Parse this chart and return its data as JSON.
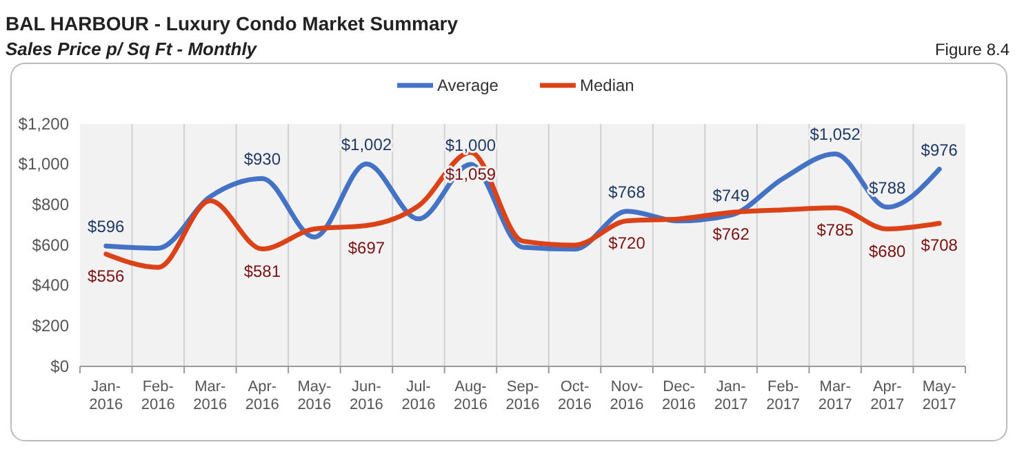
{
  "chart_data": {
    "type": "line",
    "title": "BAL HARBOUR - Luxury Condo Market Summary",
    "subtitle": "Sales Price  p/ Sq Ft - Monthly",
    "annotations": [
      "Figure 8.4"
    ],
    "categories": [
      "Jan-2016",
      "Feb-2016",
      "Mar-2016",
      "Apr-2016",
      "May-2016",
      "Jun-2016",
      "Jul-2016",
      "Aug-2016",
      "Sep-2016",
      "Oct-2016",
      "Nov-2016",
      "Dec-2016",
      "Jan-2017",
      "Feb-2017",
      "Mar-2017",
      "Apr-2017",
      "May-2017"
    ],
    "series": [
      {
        "name": "Average",
        "color": "#4472c4",
        "values": [
          596,
          585,
          840,
          930,
          640,
          1002,
          730,
          1000,
          590,
          580,
          768,
          720,
          749,
          930,
          1052,
          788,
          976
        ],
        "value_labels": [
          "$596",
          null,
          null,
          "$930",
          null,
          "$1,002",
          null,
          "$1,000",
          null,
          null,
          "$768",
          null,
          "$749",
          null,
          "$1,052",
          "$788",
          "$976"
        ]
      },
      {
        "name": "Median",
        "color": "#dc4218",
        "values": [
          556,
          490,
          820,
          581,
          680,
          697,
          795,
          1059,
          620,
          600,
          720,
          730,
          762,
          775,
          785,
          680,
          708
        ],
        "value_labels": [
          "$556",
          null,
          null,
          "$581",
          null,
          "$697",
          null,
          "$1,059",
          null,
          null,
          "$720",
          null,
          "$762",
          null,
          "$785",
          "$680",
          "$708"
        ]
      }
    ],
    "ylim": [
      0,
      1200
    ],
    "yticks": [
      {
        "value": 0,
        "label": "$0"
      },
      {
        "value": 200,
        "label": "$200"
      },
      {
        "value": 400,
        "label": "$400"
      },
      {
        "value": 600,
        "label": "$600"
      },
      {
        "value": 800,
        "label": "$800"
      },
      {
        "value": 1000,
        "label": "$1,000"
      },
      {
        "value": 1200,
        "label": "$1,200"
      }
    ],
    "grid": "x",
    "legend": "top",
    "marker": "none",
    "line_style": "solid"
  }
}
